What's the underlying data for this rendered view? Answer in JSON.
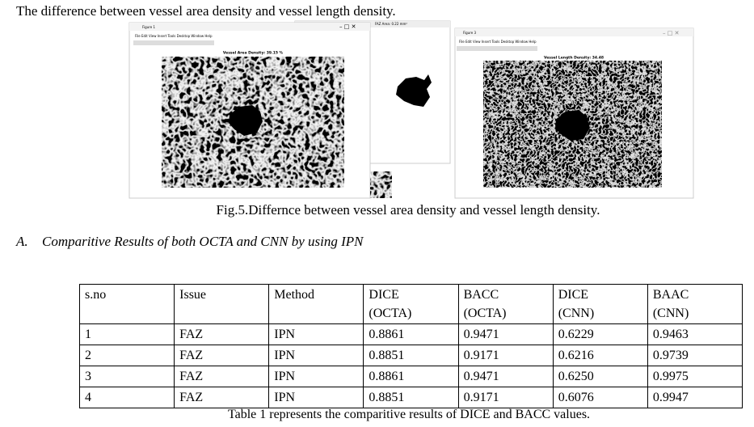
{
  "header": {
    "text": "The difference between vessel area density and vessel length density."
  },
  "figure": {
    "windows": [
      {
        "title": "Figure 1",
        "menu": "File  Edit  View  Insert  Tools  Desktop  Window  Help",
        "label": "Vessel Area Density: 39.15 %"
      },
      {
        "label": "FAZ Area: 0.22 mm²"
      },
      {
        "title": "Figure 3",
        "menu": "File  Edit  View  Insert  Tools  Desktop  Window  Help",
        "label": "Vessel Length Density: 34.48"
      }
    ],
    "caption": "Fig.5.Differnce between vessel area density and vessel length density."
  },
  "section": {
    "number": "A.",
    "title": "Comparitive Results of both OCTA and CNN by using IPN"
  },
  "table": {
    "columns": [
      "s.no",
      "Issue",
      "Method",
      "DICE\n(OCTA)",
      "BACC\n(OCTA)",
      "DICE\n(CNN)",
      "BAAC\n(CNN)"
    ],
    "rows": [
      [
        "1",
        "FAZ",
        "IPN",
        "0.8861",
        "0.9471",
        "0.6229",
        "0.9463"
      ],
      [
        "2",
        "FAZ",
        "IPN",
        "0.8851",
        "0.9171",
        "0.6216",
        "0.9739"
      ],
      [
        "3",
        "FAZ",
        "IPN",
        "0.8861",
        "0.9471",
        "0.6250",
        "0.9975"
      ],
      [
        "4",
        "FAZ",
        "IPN",
        "0.8851",
        "0.9171",
        "0.6076",
        "0.9947"
      ]
    ],
    "caption": "Table 1 represents the comparitive results of DICE and BACC values."
  }
}
